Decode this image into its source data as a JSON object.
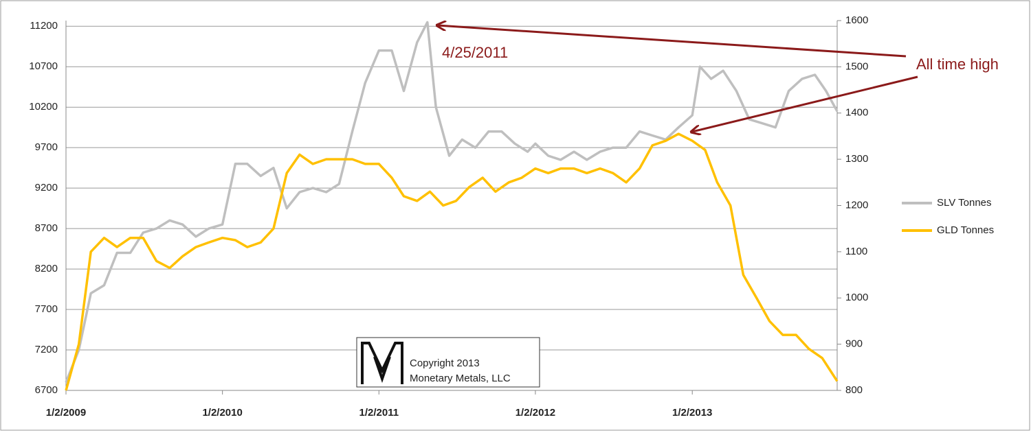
{
  "chart_data": {
    "type": "line",
    "annotations": [
      "4/25/2011",
      "All time high"
    ],
    "copyright": [
      "Copyright 2013",
      "Monetary Metals, LLC"
    ],
    "legend": "right",
    "grid": true,
    "xlim": [
      "2009-01-02",
      "2013-12-06"
    ],
    "xticks": [
      {
        "value": "2009-01-02",
        "label": "1/2/2009"
      },
      {
        "value": "2010-01-02",
        "label": "1/2/2010"
      },
      {
        "value": "2011-01-02",
        "label": "1/2/2011"
      },
      {
        "value": "2012-01-02",
        "label": "1/2/2012"
      },
      {
        "value": "2013-01-02",
        "label": "1/2/2013"
      }
    ],
    "ylim": [
      6700,
      11270
    ],
    "yticks": [
      6700,
      7200,
      7700,
      8200,
      8700,
      9200,
      9700,
      10200,
      10700,
      11200
    ],
    "y2lim": [
      800,
      1600
    ],
    "y2ticks": [
      800,
      900,
      1000,
      1100,
      1200,
      1300,
      1400,
      1500,
      1600
    ],
    "series": [
      {
        "name": "SLV Tonnes",
        "color": "#bfbfbf",
        "axis": "y",
        "x": [
          "2009-01-02",
          "2009-02-01",
          "2009-03-01",
          "2009-04-01",
          "2009-05-01",
          "2009-06-01",
          "2009-07-01",
          "2009-08-01",
          "2009-09-01",
          "2009-10-01",
          "2009-11-01",
          "2009-12-01",
          "2010-01-02",
          "2010-02-01",
          "2010-03-01",
          "2010-04-01",
          "2010-05-01",
          "2010-06-01",
          "2010-07-01",
          "2010-08-01",
          "2010-09-01",
          "2010-10-01",
          "2010-11-01",
          "2010-12-01",
          "2011-01-02",
          "2011-02-01",
          "2011-03-01",
          "2011-04-01",
          "2011-04-25",
          "2011-05-15",
          "2011-06-15",
          "2011-07-15",
          "2011-08-15",
          "2011-09-15",
          "2011-10-15",
          "2011-11-15",
          "2011-12-15",
          "2012-01-02",
          "2012-02-01",
          "2012-03-01",
          "2012-04-01",
          "2012-05-01",
          "2012-06-01",
          "2012-07-01",
          "2012-08-01",
          "2012-09-01",
          "2012-10-01",
          "2012-11-01",
          "2012-12-01",
          "2013-01-02",
          "2013-01-20",
          "2013-02-15",
          "2013-03-15",
          "2013-04-15",
          "2013-05-15",
          "2013-06-15",
          "2013-07-15",
          "2013-08-15",
          "2013-09-15",
          "2013-10-15",
          "2013-11-10",
          "2013-12-06"
        ],
        "values": [
          6800,
          7200,
          7900,
          8000,
          8400,
          8400,
          8650,
          8700,
          8800,
          8750,
          8600,
          8700,
          8750,
          9500,
          9500,
          9350,
          9450,
          8950,
          9150,
          9200,
          9150,
          9250,
          9900,
          10500,
          10900,
          10900,
          10400,
          11000,
          11250,
          10200,
          9600,
          9800,
          9700,
          9900,
          9900,
          9750,
          9650,
          9750,
          9600,
          9550,
          9650,
          9550,
          9650,
          9700,
          9700,
          9900,
          9850,
          9800,
          9950,
          10100,
          10700,
          10550,
          10650,
          10400,
          10050,
          10000,
          9950,
          10400,
          10550,
          10600,
          10400,
          10150
        ]
      },
      {
        "name": "GLD Tonnes",
        "color": "#ffc000",
        "axis": "y2",
        "x": [
          "2009-01-02",
          "2009-02-01",
          "2009-03-01",
          "2009-04-01",
          "2009-05-01",
          "2009-06-01",
          "2009-07-01",
          "2009-08-01",
          "2009-09-01",
          "2009-10-01",
          "2009-11-01",
          "2009-12-01",
          "2010-01-02",
          "2010-02-01",
          "2010-03-01",
          "2010-04-01",
          "2010-05-01",
          "2010-06-01",
          "2010-07-01",
          "2010-08-01",
          "2010-09-01",
          "2010-10-01",
          "2010-11-01",
          "2010-12-01",
          "2011-01-02",
          "2011-02-01",
          "2011-03-01",
          "2011-04-01",
          "2011-05-01",
          "2011-06-01",
          "2011-07-01",
          "2011-08-01",
          "2011-09-01",
          "2011-10-01",
          "2011-11-01",
          "2011-12-01",
          "2012-01-02",
          "2012-02-01",
          "2012-03-01",
          "2012-04-01",
          "2012-05-01",
          "2012-06-01",
          "2012-07-01",
          "2012-08-01",
          "2012-09-01",
          "2012-10-01",
          "2012-11-01",
          "2012-12-01",
          "2013-01-02",
          "2013-02-01",
          "2013-03-01",
          "2013-04-01",
          "2013-05-01",
          "2013-06-01",
          "2013-07-01",
          "2013-08-01",
          "2013-09-01",
          "2013-10-01",
          "2013-11-01",
          "2013-12-06"
        ],
        "values": [
          800,
          900,
          1100,
          1130,
          1110,
          1130,
          1130,
          1080,
          1065,
          1090,
          1110,
          1120,
          1130,
          1125,
          1110,
          1120,
          1150,
          1270,
          1310,
          1290,
          1300,
          1300,
          1300,
          1290,
          1290,
          1260,
          1220,
          1210,
          1230,
          1200,
          1210,
          1240,
          1260,
          1230,
          1250,
          1260,
          1280,
          1270,
          1280,
          1280,
          1270,
          1280,
          1270,
          1250,
          1280,
          1330,
          1340,
          1355,
          1340,
          1320,
          1250,
          1200,
          1050,
          1000,
          950,
          920,
          920,
          890,
          870,
          820
        ]
      }
    ]
  }
}
